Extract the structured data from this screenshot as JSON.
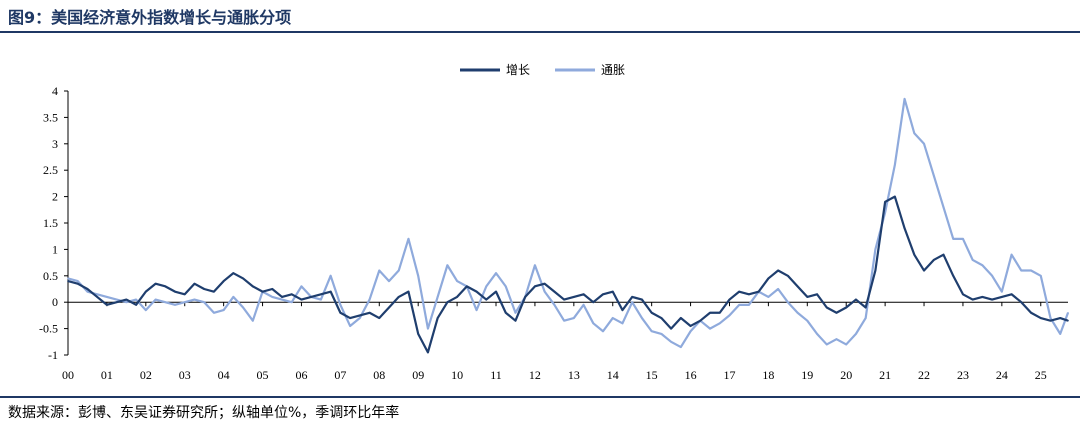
{
  "figure": {
    "title": "图9：美国经济意外指数增长与通胀分项",
    "source": "数据来源：彭博、东吴证券研究所；纵轴单位%，季调环比年率"
  },
  "chart_data": {
    "type": "line",
    "title": "",
    "xlabel": "",
    "ylabel": "",
    "ylim": [
      -1,
      4
    ],
    "xlim": [
      2000.0,
      2025.7
    ],
    "yticks": [
      -1,
      -0.5,
      0,
      0.5,
      1,
      1.5,
      2,
      2.5,
      3,
      3.5,
      4
    ],
    "ytick_labels": [
      "-1",
      "-0.5",
      "0",
      "0.5",
      "1",
      "1.5",
      "2",
      "2.5",
      "3",
      "3.5",
      "4"
    ],
    "xticks": [
      2000,
      2001,
      2002,
      2003,
      2004,
      2005,
      2006,
      2007,
      2008,
      2009,
      2010,
      2011,
      2012,
      2013,
      2014,
      2015,
      2016,
      2017,
      2018,
      2019,
      2020,
      2021,
      2022,
      2023,
      2024,
      2025
    ],
    "xtick_labels": [
      "00",
      "01",
      "02",
      "03",
      "04",
      "05",
      "06",
      "07",
      "08",
      "09",
      "10",
      "11",
      "12",
      "13",
      "14",
      "15",
      "16",
      "17",
      "18",
      "19",
      "20",
      "21",
      "22",
      "23",
      "24",
      "25"
    ],
    "grid": false,
    "legend_position": "top-center",
    "colors": {
      "增长": "#1f3e6e",
      "通胀": "#8faadc"
    },
    "series": [
      {
        "name": "增长",
        "x": [
          2000.0,
          2000.25,
          2000.5,
          2000.75,
          2001.0,
          2001.25,
          2001.5,
          2001.75,
          2002.0,
          2002.25,
          2002.5,
          2002.75,
          2003.0,
          2003.25,
          2003.5,
          2003.75,
          2004.0,
          2004.25,
          2004.5,
          2004.75,
          2005.0,
          2005.25,
          2005.5,
          2005.75,
          2006.0,
          2006.25,
          2006.5,
          2006.75,
          2007.0,
          2007.25,
          2007.5,
          2007.75,
          2008.0,
          2008.25,
          2008.5,
          2008.75,
          2009.0,
          2009.25,
          2009.5,
          2009.75,
          2010.0,
          2010.25,
          2010.5,
          2010.75,
          2011.0,
          2011.25,
          2011.5,
          2011.75,
          2012.0,
          2012.25,
          2012.5,
          2012.75,
          2013.0,
          2013.25,
          2013.5,
          2013.75,
          2014.0,
          2014.25,
          2014.5,
          2014.75,
          2015.0,
          2015.25,
          2015.5,
          2015.75,
          2016.0,
          2016.25,
          2016.5,
          2016.75,
          2017.0,
          2017.25,
          2017.5,
          2017.75,
          2018.0,
          2018.25,
          2018.5,
          2018.75,
          2019.0,
          2019.25,
          2019.5,
          2019.75,
          2020.0,
          2020.25,
          2020.5,
          2020.75,
          2021.0,
          2021.25,
          2021.5,
          2021.75,
          2022.0,
          2022.25,
          2022.5,
          2022.75,
          2023.0,
          2023.25,
          2023.5,
          2023.75,
          2024.0,
          2024.25,
          2024.5,
          2024.75,
          2025.0,
          2025.25,
          2025.5,
          2025.7
        ],
        "values": [
          0.4,
          0.35,
          0.25,
          0.1,
          -0.05,
          0.0,
          0.05,
          -0.05,
          0.2,
          0.35,
          0.3,
          0.2,
          0.15,
          0.35,
          0.25,
          0.2,
          0.4,
          0.55,
          0.45,
          0.3,
          0.2,
          0.25,
          0.1,
          0.15,
          0.05,
          0.1,
          0.15,
          0.2,
          -0.2,
          -0.3,
          -0.25,
          -0.2,
          -0.3,
          -0.1,
          0.1,
          0.2,
          -0.6,
          -0.95,
          -0.3,
          0.0,
          0.1,
          0.3,
          0.2,
          0.05,
          0.2,
          -0.2,
          -0.35,
          0.1,
          0.3,
          0.35,
          0.2,
          0.05,
          0.1,
          0.15,
          0.0,
          0.15,
          0.2,
          -0.15,
          0.1,
          0.05,
          -0.2,
          -0.3,
          -0.5,
          -0.3,
          -0.45,
          -0.35,
          -0.2,
          -0.2,
          0.05,
          0.2,
          0.15,
          0.2,
          0.45,
          0.6,
          0.5,
          0.3,
          0.1,
          0.15,
          -0.1,
          -0.2,
          -0.1,
          0.05,
          -0.1,
          0.6,
          1.9,
          2.0,
          1.4,
          0.9,
          0.6,
          0.8,
          0.9,
          0.5,
          0.15,
          0.05,
          0.1,
          0.05,
          0.1,
          0.15,
          0.0,
          -0.2,
          -0.3,
          -0.35,
          -0.3,
          -0.35
        ]
      },
      {
        "name": "通胀",
        "x": [
          2000.0,
          2000.25,
          2000.5,
          2000.75,
          2001.0,
          2001.25,
          2001.5,
          2001.75,
          2002.0,
          2002.25,
          2002.5,
          2002.75,
          2003.0,
          2003.25,
          2003.5,
          2003.75,
          2004.0,
          2004.25,
          2004.5,
          2004.75,
          2005.0,
          2005.25,
          2005.5,
          2005.75,
          2006.0,
          2006.25,
          2006.5,
          2006.75,
          2007.0,
          2007.25,
          2007.5,
          2007.75,
          2008.0,
          2008.25,
          2008.5,
          2008.75,
          2009.0,
          2009.25,
          2009.5,
          2009.75,
          2010.0,
          2010.25,
          2010.5,
          2010.75,
          2011.0,
          2011.25,
          2011.5,
          2011.75,
          2012.0,
          2012.25,
          2012.5,
          2012.75,
          2013.0,
          2013.25,
          2013.5,
          2013.75,
          2014.0,
          2014.25,
          2014.5,
          2014.75,
          2015.0,
          2015.25,
          2015.5,
          2015.75,
          2016.0,
          2016.25,
          2016.5,
          2016.75,
          2017.0,
          2017.25,
          2017.5,
          2017.75,
          2018.0,
          2018.25,
          2018.5,
          2018.75,
          2019.0,
          2019.25,
          2019.5,
          2019.75,
          2020.0,
          2020.25,
          2020.5,
          2020.75,
          2021.0,
          2021.25,
          2021.5,
          2021.75,
          2022.0,
          2022.25,
          2022.5,
          2022.75,
          2023.0,
          2023.25,
          2023.5,
          2023.75,
          2024.0,
          2024.25,
          2024.5,
          2024.75,
          2025.0,
          2025.25,
          2025.5,
          2025.7
        ],
        "values": [
          0.45,
          0.4,
          0.2,
          0.15,
          0.1,
          0.05,
          0.0,
          0.05,
          -0.15,
          0.05,
          0.0,
          -0.05,
          0.0,
          0.05,
          0.0,
          -0.2,
          -0.15,
          0.1,
          -0.1,
          -0.35,
          0.2,
          0.1,
          0.05,
          0.0,
          0.3,
          0.1,
          0.05,
          0.5,
          -0.05,
          -0.45,
          -0.3,
          0.05,
          0.6,
          0.4,
          0.6,
          1.2,
          0.5,
          -0.5,
          0.1,
          0.7,
          0.4,
          0.3,
          -0.15,
          0.3,
          0.55,
          0.3,
          -0.2,
          0.1,
          0.7,
          0.2,
          -0.05,
          -0.35,
          -0.3,
          -0.05,
          -0.4,
          -0.55,
          -0.3,
          -0.4,
          0.0,
          -0.3,
          -0.55,
          -0.6,
          -0.75,
          -0.85,
          -0.55,
          -0.35,
          -0.5,
          -0.4,
          -0.25,
          -0.05,
          -0.05,
          0.2,
          0.1,
          0.25,
          0.0,
          -0.2,
          -0.35,
          -0.6,
          -0.8,
          -0.7,
          -0.8,
          -0.6,
          -0.3,
          1.0,
          1.7,
          2.6,
          3.85,
          3.2,
          3.0,
          2.4,
          1.8,
          1.2,
          1.2,
          0.8,
          0.7,
          0.5,
          0.2,
          0.9,
          0.6,
          0.6,
          0.5,
          -0.3,
          -0.6,
          -0.2
        ]
      }
    ]
  }
}
